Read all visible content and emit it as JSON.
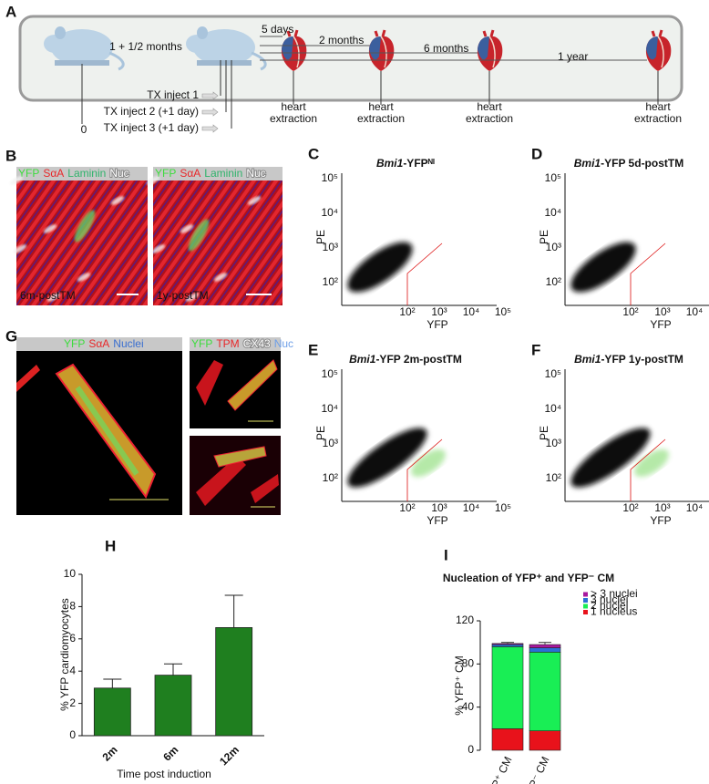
{
  "figure": {
    "panel_letters": [
      "A",
      "B",
      "C",
      "D",
      "E",
      "F",
      "G",
      "H",
      "I"
    ],
    "timeline": {
      "intervals": [
        "1 + 1/2 months",
        "5 days",
        "2 months",
        "6 months",
        "1 year"
      ],
      "start": "0",
      "injections": [
        "TX inject 1",
        "TX inject 2 (+1 day)",
        "TX inject 3 (+1 day)"
      ],
      "extraction_label": [
        "heart",
        "extraction"
      ]
    },
    "stains_B": [
      {
        "text": "YFP",
        "color": "#3ddc3d"
      },
      {
        "text": "SαA",
        "color": "#e8282a"
      },
      {
        "text": "Laminin",
        "color": "#2fb36b"
      },
      {
        "text": "Nuc",
        "color": "#ffffff"
      }
    ],
    "captions_B": [
      "6m-postTM",
      "1y-postTM"
    ],
    "stains_G": [
      {
        "text": "YFP",
        "color": "#3ddc3d"
      },
      {
        "text": "SαA",
        "color": "#e8282a"
      },
      {
        "text": "Nuclei",
        "color": "#3a6fd0"
      }
    ],
    "stains_G_small": [
      {
        "text": "YFP",
        "color": "#3ddc3d"
      },
      {
        "text": "TPM",
        "color": "#e8282a"
      },
      {
        "text": "CX43",
        "color": "#ffffff"
      },
      {
        "text": "Nuc",
        "color": "#6fa0e8"
      }
    ],
    "flow": {
      "x_label": "YFP",
      "y_label": "PE",
      "ticks": [
        "10²",
        "10³",
        "10⁴",
        "10⁵"
      ],
      "plots": [
        {
          "gene": "Bmi1",
          "rest": "-YFPᴺᴵ"
        },
        {
          "gene": "Bmi1",
          "rest": "-YFP 5d-postTM"
        },
        {
          "gene": "Bmi1",
          "rest": "-YFP 2m-postTM"
        },
        {
          "gene": "Bmi1",
          "rest": "-YFP 1y-postTM"
        }
      ]
    }
  },
  "chart_data": [
    {
      "type": "bar",
      "categories": [
        "2m",
        "6m",
        "12m"
      ],
      "values": [
        2.95,
        3.75,
        6.7
      ],
      "errors": [
        0.55,
        0.7,
        2.0
      ],
      "color": "#1f7f1f",
      "ylim": [
        0,
        10
      ],
      "yticks": [
        0,
        2,
        4,
        6,
        8,
        10
      ],
      "y_label": "% YFP cardiomyocytes",
      "x_label": "Time post induction"
    },
    {
      "type": "stacked_bar",
      "title": "Nucleation of YFP⁺ and YFP⁻ CM",
      "categories": [
        "YFP⁺ CM",
        "YFP⁻ CM"
      ],
      "series": [
        {
          "name": "1 nucleus",
          "color": "#e8121b",
          "values": [
            20,
            18
          ],
          "errors": [
            2,
            3
          ]
        },
        {
          "name": "2 nuclei",
          "color": "#19ee55",
          "values": [
            76,
            73
          ]
        },
        {
          "name": "3 nuclei",
          "color": "#2b6fd6",
          "values": [
            2,
            4
          ]
        },
        {
          "name": "> 3 nuclei",
          "color": "#a8179e",
          "values": [
            1,
            3
          ],
          "errors": [
            1,
            2
          ]
        }
      ],
      "ylim": [
        0,
        120
      ],
      "yticks": [
        0,
        40,
        80,
        120
      ],
      "y_label": "% YFP⁺ CM"
    }
  ]
}
